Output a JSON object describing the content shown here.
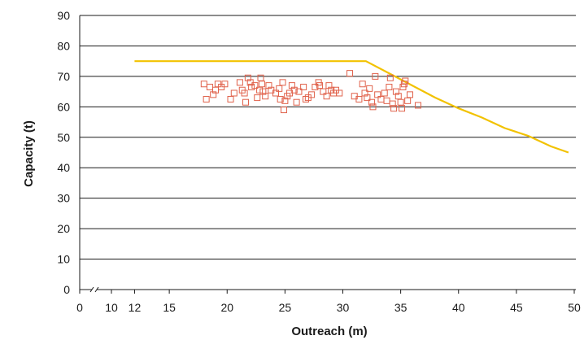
{
  "chart_data": {
    "type": "scatter",
    "title": "",
    "xlabel": "Outreach (m)",
    "ylabel": "Capacity (t)",
    "xlim": [
      0,
      50
    ],
    "ylim": [
      0,
      90
    ],
    "x_axis_break": "between 0 and 10",
    "x_ticks": [
      0,
      10,
      12,
      15,
      20,
      25,
      30,
      35,
      40,
      45,
      50
    ],
    "y_ticks": [
      0,
      10,
      20,
      30,
      40,
      50,
      60,
      70,
      80,
      90
    ],
    "grid": "horizontal",
    "legend": "none",
    "colors": {
      "capacity_curve": "#f2c200",
      "points": "#e0614a",
      "grid": "#1a1a1a"
    },
    "series": [
      {
        "type": "line",
        "values": [
          [
            12,
            75
          ],
          [
            32,
            75
          ],
          [
            34,
            71
          ],
          [
            36,
            67
          ],
          [
            38,
            63
          ],
          [
            40,
            59.5
          ],
          [
            42,
            56.5
          ],
          [
            44,
            53
          ],
          [
            46,
            50.5
          ],
          [
            48,
            47
          ],
          [
            49.5,
            45
          ]
        ]
      },
      {
        "type": "scatter",
        "marker": "open-square",
        "values": [
          [
            18,
            67.5
          ],
          [
            18.2,
            62.5
          ],
          [
            18.5,
            66.5
          ],
          [
            18.8,
            64
          ],
          [
            19,
            65.5
          ],
          [
            19.2,
            67.5
          ],
          [
            19.5,
            66.5
          ],
          [
            19.8,
            67.5
          ],
          [
            20.3,
            62.5
          ],
          [
            20.6,
            64.5
          ],
          [
            21.1,
            68
          ],
          [
            21.3,
            65.5
          ],
          [
            21.5,
            64.5
          ],
          [
            21.6,
            61.5
          ],
          [
            21.8,
            69.5
          ],
          [
            22,
            68
          ],
          [
            22.1,
            66.5
          ],
          [
            22.4,
            67
          ],
          [
            22.6,
            63
          ],
          [
            22.8,
            65.5
          ],
          [
            22.9,
            69.5
          ],
          [
            23,
            67.5
          ],
          [
            23.1,
            65
          ],
          [
            23.3,
            63.5
          ],
          [
            23.6,
            67
          ],
          [
            23.8,
            65.5
          ],
          [
            24.2,
            64.5
          ],
          [
            24.5,
            66
          ],
          [
            24.6,
            62.5
          ],
          [
            24.8,
            68
          ],
          [
            24.9,
            59
          ],
          [
            25,
            62
          ],
          [
            25.2,
            63.5
          ],
          [
            25.4,
            64.5
          ],
          [
            25.6,
            67
          ],
          [
            25.8,
            65.5
          ],
          [
            26,
            61.5
          ],
          [
            26.2,
            65
          ],
          [
            26.6,
            66.5
          ],
          [
            26.8,
            62.5
          ],
          [
            27,
            63
          ],
          [
            27.3,
            64
          ],
          [
            27.6,
            66.5
          ],
          [
            27.9,
            68
          ],
          [
            28,
            67
          ],
          [
            28.3,
            65
          ],
          [
            28.6,
            63.5
          ],
          [
            28.8,
            67
          ],
          [
            29,
            65.5
          ],
          [
            29.2,
            64.5
          ],
          [
            29.4,
            65.5
          ],
          [
            29.7,
            64.5
          ],
          [
            30.6,
            71
          ],
          [
            31,
            63.5
          ],
          [
            31.4,
            62.5
          ],
          [
            31.7,
            67.5
          ],
          [
            31.9,
            64.5
          ],
          [
            32.1,
            63
          ],
          [
            32.3,
            66
          ],
          [
            32.5,
            61.5
          ],
          [
            32.6,
            60
          ],
          [
            32.8,
            70
          ],
          [
            33,
            64
          ],
          [
            33.3,
            62.5
          ],
          [
            33.6,
            64.5
          ],
          [
            33.8,
            62
          ],
          [
            34,
            66.5
          ],
          [
            34.1,
            69.5
          ],
          [
            34.3,
            61
          ],
          [
            34.4,
            59.5
          ],
          [
            34.6,
            65
          ],
          [
            34.8,
            63.5
          ],
          [
            35,
            61.5
          ],
          [
            35.1,
            59.5
          ],
          [
            35.2,
            66.5
          ],
          [
            35.3,
            67.5
          ],
          [
            35.4,
            68.5
          ],
          [
            35.6,
            62
          ],
          [
            35.8,
            64
          ],
          [
            36.5,
            60.5
          ]
        ]
      }
    ]
  }
}
